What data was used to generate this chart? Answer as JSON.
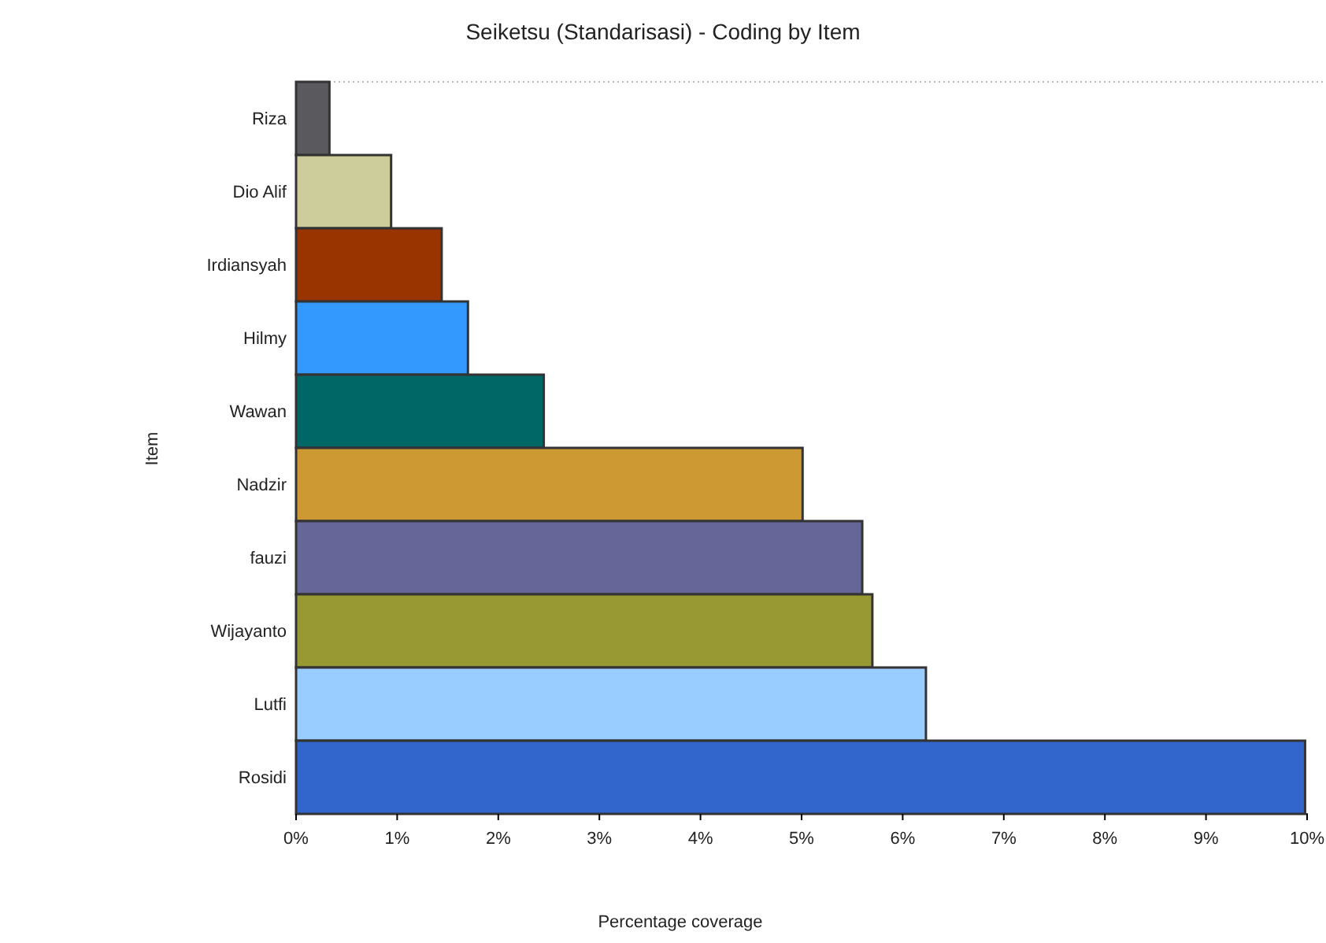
{
  "chart_data": {
    "type": "bar",
    "orientation": "horizontal",
    "title": "Seiketsu (Standarisasi) - Coding by Item",
    "xlabel": "Percentage coverage",
    "ylabel": "Item",
    "categories": [
      "Riza",
      "Dio Alif",
      "Irdiansyah",
      "Hilmy",
      "Wawan",
      "Nadzir",
      "fauzi",
      "Wijayanto",
      "Lutfi",
      "Rosidi"
    ],
    "values": [
      0.33,
      0.94,
      1.44,
      1.7,
      2.45,
      5.01,
      5.6,
      5.7,
      6.23,
      9.98
    ],
    "colors": [
      "#5a5a5e",
      "#cdcd9b",
      "#993300",
      "#3399ff",
      "#006666",
      "#cc9933",
      "#666699",
      "#999933",
      "#99ccff",
      "#3366cc"
    ],
    "xlim": [
      0,
      10
    ],
    "xticks": [
      {
        "value": 0,
        "label": "0%"
      },
      {
        "value": 1,
        "label": "1%"
      },
      {
        "value": 2,
        "label": "2%"
      },
      {
        "value": 3,
        "label": "3%"
      },
      {
        "value": 4,
        "label": "4%"
      },
      {
        "value": 5,
        "label": "5%"
      },
      {
        "value": 6,
        "label": "6%"
      },
      {
        "value": 7,
        "label": "7%"
      },
      {
        "value": 8,
        "label": "8%"
      },
      {
        "value": 9,
        "label": "9%"
      },
      {
        "value": 10,
        "label": "10%"
      }
    ]
  }
}
